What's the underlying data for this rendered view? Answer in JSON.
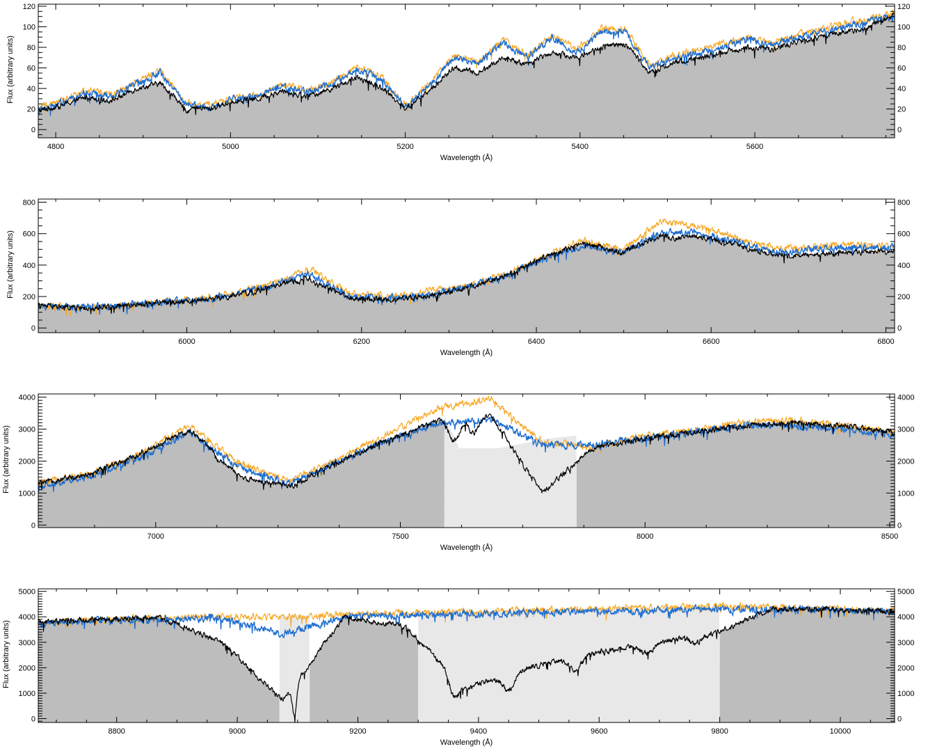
{
  "colors": {
    "fill": "#bdbdbd",
    "masked_fill": "#e8e8e8",
    "observed": "#000000",
    "model_blue": "#1f6fd1",
    "model_orange": "#f6a623"
  },
  "chart_data": [
    {
      "type": "line",
      "xlabel": "Wavelength (Å)",
      "ylabel": "Flux (arbitrary units)",
      "xlim": [
        4780,
        5760
      ],
      "ylim": [
        -8,
        122
      ],
      "xticks": [
        4800,
        5000,
        5200,
        5400,
        5600
      ],
      "yticks": [
        0,
        20,
        40,
        60,
        80,
        100,
        120
      ],
      "masked_regions": [],
      "continuum": [
        [
          4780,
          18
        ],
        [
          4850,
          26
        ],
        [
          4940,
          40
        ],
        [
          4950,
          20
        ],
        [
          5000,
          25
        ],
        [
          5100,
          34
        ],
        [
          5160,
          40
        ],
        [
          5170,
          20
        ],
        [
          5200,
          18
        ],
        [
          5210,
          48
        ],
        [
          5300,
          60
        ],
        [
          5400,
          75
        ],
        [
          5440,
          80
        ],
        [
          5450,
          50
        ],
        [
          5500,
          60
        ],
        [
          5600,
          75
        ],
        [
          5700,
          90
        ],
        [
          5760,
          105
        ]
      ],
      "absorption": [
        [
          4950,
          8,
          8
        ],
        [
          5170,
          10,
          12
        ],
        [
          5330,
          4,
          15
        ],
        [
          5450,
          6,
          10
        ]
      ],
      "series": [
        {
          "role": "observed",
          "values": [
            18,
            24,
            32,
            28,
            40,
            45,
            22,
            20,
            28,
            30,
            38,
            32,
            40,
            50,
            45,
            20,
            38,
            60,
            55,
            70,
            65,
            75,
            70,
            80,
            85,
            55,
            65,
            70,
            75,
            80,
            78,
            85,
            90,
            95,
            100,
            112
          ]
        },
        {
          "role": "model-blue",
          "values": [
            20,
            26,
            36,
            32,
            45,
            55,
            25,
            22,
            30,
            33,
            42,
            36,
            45,
            58,
            50,
            22,
            42,
            70,
            65,
            85,
            70,
            90,
            75,
            95,
            95,
            60,
            70,
            75,
            80,
            88,
            82,
            90,
            95,
            100,
            105,
            110
          ]
        },
        {
          "role": "model-orange",
          "values": [
            22,
            28,
            38,
            34,
            46,
            58,
            26,
            24,
            31,
            34,
            44,
            38,
            46,
            60,
            52,
            24,
            44,
            72,
            66,
            88,
            72,
            92,
            78,
            98,
            98,
            62,
            72,
            78,
            84,
            90,
            84,
            92,
            98,
            104,
            108,
            114
          ]
        }
      ]
    },
    {
      "type": "line",
      "xlabel": "Wavelength (Å)",
      "ylabel": "Flux (arbitrary units)",
      "xlim": [
        5830,
        6810
      ],
      "ylim": [
        -30,
        820
      ],
      "xticks": [
        6000,
        6200,
        6400,
        6600,
        6800
      ],
      "yticks": [
        0,
        200,
        400,
        600,
        800
      ],
      "masked_regions": [],
      "continuum": [
        [
          5830,
          140
        ],
        [
          5880,
          120
        ],
        [
          5890,
          140
        ],
        [
          6000,
          175
        ],
        [
          6100,
          300
        ],
        [
          6140,
          340
        ],
        [
          6150,
          190
        ],
        [
          6250,
          210
        ],
        [
          6300,
          280
        ],
        [
          6400,
          480
        ],
        [
          6450,
          560
        ],
        [
          6490,
          460
        ],
        [
          6520,
          600
        ],
        [
          6600,
          580
        ],
        [
          6650,
          480
        ],
        [
          6700,
          460
        ],
        [
          6800,
          490
        ],
        [
          6810,
          490
        ]
      ],
      "absorption": [
        [
          5890,
          60,
          6
        ],
        [
          6150,
          80,
          8
        ],
        [
          6560,
          40,
          8
        ]
      ],
      "series": [
        {
          "role": "observed",
          "values": [
            140,
            130,
            140,
            160,
            175,
            200,
            260,
            320,
            190,
            180,
            200,
            250,
            330,
            450,
            540,
            480,
            590,
            580,
            520,
            460,
            470,
            480,
            490
          ]
        },
        {
          "role": "model-blue",
          "values": [
            140,
            128,
            140,
            160,
            175,
            210,
            270,
            340,
            200,
            190,
            210,
            260,
            330,
            440,
            530,
            480,
            610,
            600,
            540,
            480,
            500,
            510,
            510
          ]
        },
        {
          "role": "model-orange",
          "values": [
            140,
            130,
            142,
            162,
            180,
            220,
            290,
            370,
            220,
            200,
            230,
            270,
            340,
            450,
            560,
            500,
            680,
            640,
            570,
            500,
            520,
            530,
            520
          ]
        }
      ]
    },
    {
      "type": "line",
      "xlabel": "Wavelength (Å)",
      "ylabel": "Flux (arbitrary units)",
      "xlim": [
        6760,
        8510
      ],
      "ylim": [
        -80,
        4100
      ],
      "xticks": [
        7000,
        7500,
        8000,
        8500
      ],
      "yticks": [
        0,
        1000,
        2000,
        3000,
        4000
      ],
      "ytick_labels": [
        "0",
        "1000",
        "2000",
        "3000",
        "4000"
      ],
      "masked_regions": [
        [
          7590,
          7860
        ]
      ],
      "continuum": [
        [
          6760,
          1300
        ],
        [
          6900,
          1900
        ],
        [
          7050,
          3100
        ],
        [
          7060,
          1800
        ],
        [
          7130,
          1300
        ],
        [
          7150,
          1500
        ],
        [
          7300,
          2500
        ],
        [
          7400,
          3100
        ],
        [
          7500,
          3400
        ],
        [
          7590,
          3400
        ],
        [
          7620,
          2400
        ],
        [
          7700,
          2400
        ],
        [
          7800,
          2700
        ],
        [
          7860,
          2800
        ],
        [
          8000,
          3000
        ],
        [
          8200,
          3200
        ],
        [
          8400,
          3000
        ],
        [
          8510,
          2900
        ]
      ],
      "absorption": [
        [
          7060,
          300,
          8
        ],
        [
          7130,
          300,
          10
        ],
        [
          7610,
          1900,
          16
        ],
        [
          7650,
          1400,
          14
        ]
      ],
      "series": [
        {
          "role": "observed",
          "values": [
            1300,
            1600,
            2200,
            3000,
            1500,
            1200,
            2000,
            2700,
            3300,
            3400,
            1000,
            2400,
            2700,
            2900,
            3100,
            3200,
            3100,
            2900
          ]
        },
        {
          "role": "model-blue",
          "values": [
            1200,
            1500,
            2100,
            2900,
            1800,
            1300,
            2000,
            2700,
            3200,
            3300,
            2500,
            2500,
            2700,
            2900,
            3100,
            3100,
            3000,
            2800
          ]
        },
        {
          "role": "model-orange",
          "values": [
            1300,
            1600,
            2200,
            3100,
            1900,
            1400,
            2100,
            2900,
            3700,
            3900,
            2600,
            2400,
            2800,
            2950,
            3200,
            3300,
            3100,
            2900
          ]
        }
      ]
    },
    {
      "type": "line",
      "xlabel": "Wavelength (Å)",
      "ylabel": "Flux (arbitrary units)",
      "xlim": [
        8670,
        10090
      ],
      "ylim": [
        -150,
        5100
      ],
      "xticks": [
        8800,
        9000,
        9200,
        9400,
        9600,
        9800,
        10000
      ],
      "yticks": [
        0,
        1000,
        2000,
        3000,
        4000,
        5000
      ],
      "ytick_labels": [
        "0",
        "1000",
        "2000",
        "3000",
        "4000",
        "5000"
      ],
      "masked_regions": [
        [
          9070,
          9120
        ],
        [
          9300,
          9800
        ]
      ],
      "continuum": [
        [
          8670,
          3800
        ],
        [
          8800,
          3900
        ],
        [
          9000,
          4000
        ],
        [
          9200,
          4100
        ],
        [
          9400,
          4200
        ],
        [
          9600,
          4300
        ],
        [
          9800,
          4350
        ],
        [
          10000,
          4300
        ],
        [
          10090,
          4300
        ]
      ],
      "absorption": [
        [
          9095,
          3500,
          5
        ],
        [
          9360,
          2400,
          12
        ],
        [
          9450,
          1800,
          14
        ],
        [
          9560,
          1500,
          14
        ],
        [
          9680,
          1200,
          16
        ],
        [
          9760,
          800,
          12
        ]
      ],
      "series": [
        {
          "role": "observed",
          "values": [
            3800,
            3900,
            3950,
            3000,
            700,
            4000,
            3600,
            1200,
            2000,
            2500,
            3000,
            3300,
            4300,
            4300,
            4200
          ]
        },
        {
          "role": "model-blue",
          "values": [
            3700,
            3850,
            3900,
            3950,
            3300,
            4000,
            4050,
            4100,
            4150,
            4200,
            4250,
            4300,
            4300,
            4250,
            4200
          ]
        },
        {
          "role": "model-orange",
          "values": [
            3750,
            3900,
            3950,
            4000,
            4000,
            4100,
            4150,
            4200,
            4250,
            4300,
            4350,
            4400,
            4400,
            4300,
            4250
          ]
        }
      ]
    }
  ]
}
